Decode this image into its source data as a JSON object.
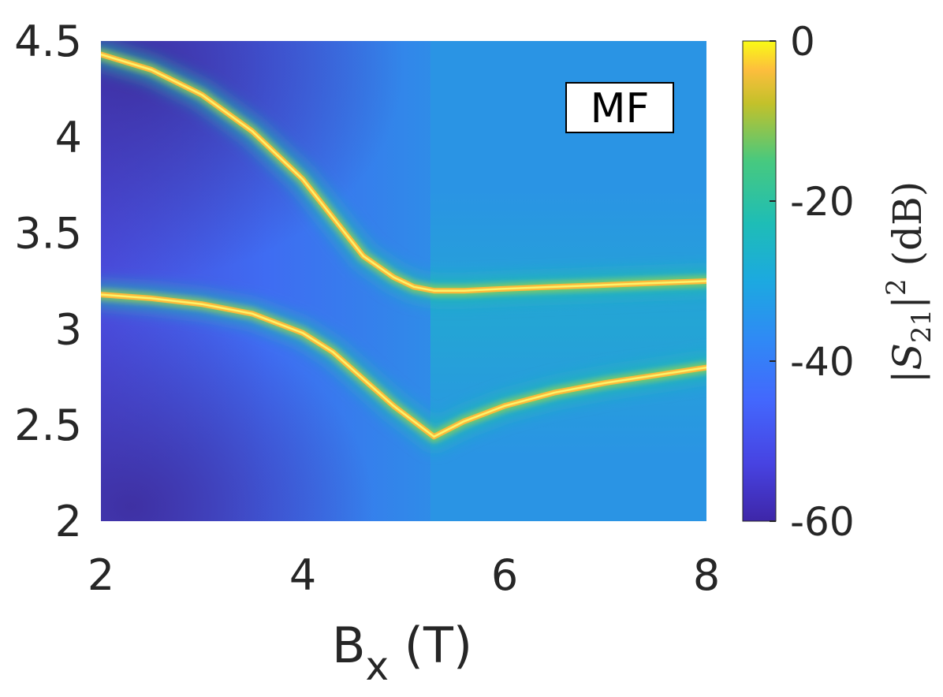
{
  "chart_data": {
    "type": "heatmap",
    "title": "",
    "xlabel": "B",
    "xlabel_sub": "x",
    "xlabel_unit": " (T)",
    "ylabel": "",
    "xlim": [
      2,
      8
    ],
    "ylim": [
      2,
      4.5
    ],
    "x_ticks": [
      "2",
      "4",
      "6",
      "8"
    ],
    "y_ticks": [
      "2",
      "2.5",
      "3",
      "3.5",
      "4",
      "4.5"
    ],
    "annotation": "MF",
    "colormap": "parula",
    "colorbar": {
      "label_base": "|S",
      "label_sub": "21",
      "label_rest": "|",
      "label_sup": "2",
      "label_unit": " (dB)",
      "range": [
        -60,
        0
      ],
      "ticks": [
        "0",
        "-20",
        "-40",
        "-60"
      ]
    },
    "branches": [
      {
        "name": "",
        "x": [
          2.0,
          2.5,
          3.0,
          3.5,
          4.0,
          4.3,
          4.6,
          4.9,
          5.1,
          5.3,
          5.6,
          6.0,
          6.5,
          7.0,
          7.5,
          8.0
        ],
        "y": [
          4.43,
          4.35,
          4.22,
          4.03,
          3.78,
          3.58,
          3.38,
          3.27,
          3.22,
          3.2,
          3.2,
          3.21,
          3.22,
          3.23,
          3.24,
          3.25
        ]
      },
      {
        "name": "",
        "x": [
          2.0,
          2.5,
          3.0,
          3.5,
          4.0,
          4.3,
          4.6,
          4.9,
          5.1,
          5.3,
          5.6,
          6.0,
          6.5,
          7.0,
          7.5,
          8.0
        ],
        "y": [
          3.18,
          3.16,
          3.13,
          3.08,
          2.98,
          2.88,
          2.74,
          2.6,
          2.52,
          2.44,
          2.52,
          2.6,
          2.67,
          2.72,
          2.76,
          2.8
        ]
      }
    ]
  }
}
